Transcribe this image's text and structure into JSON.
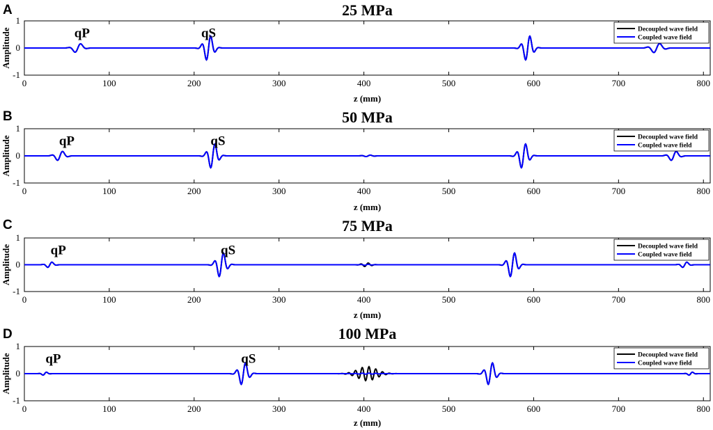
{
  "chart_data": [
    {
      "type": "line",
      "panel": "A",
      "title": "25 MPa",
      "xlabel": "z (mm)",
      "ylabel": "Amplitude",
      "xlim": [
        0,
        808
      ],
      "ylim": [
        -1,
        1
      ],
      "xticks": [
        0,
        100,
        200,
        300,
        400,
        500,
        600,
        700,
        800
      ],
      "yticks": [
        -1,
        0,
        1
      ],
      "legend": {
        "position": "top-right",
        "entries": [
          "Decoupled wave field",
          "Coupled wave field"
        ]
      },
      "annotations": [
        {
          "text": "qP",
          "x": 68,
          "y": 0.55
        },
        {
          "text": "qS",
          "x": 217,
          "y": 0.55
        }
      ],
      "series": [
        {
          "name": "Decoupled wave field",
          "color": "#000000",
          "wavelets": [
            {
              "center": 63,
              "amplitude": 0.2,
              "width": 5,
              "period": 16
            },
            {
              "center": 217,
              "amplitude": 0.5,
              "width": 5,
              "period": 11
            },
            {
              "center": 593,
              "amplitude": 0.5,
              "width": 5,
              "period": 11
            },
            {
              "center": 745,
              "amplitude": 0.2,
              "width": 6,
              "period": 16
            }
          ]
        },
        {
          "name": "Coupled wave field",
          "color": "#0000ff",
          "wavelets": [
            {
              "center": 63,
              "amplitude": 0.2,
              "width": 5,
              "period": 16
            },
            {
              "center": 217,
              "amplitude": 0.5,
              "width": 5,
              "period": 11
            },
            {
              "center": 593,
              "amplitude": 0.5,
              "width": 5,
              "period": 11
            },
            {
              "center": 745,
              "amplitude": 0.2,
              "width": 6,
              "period": 16
            }
          ]
        }
      ]
    },
    {
      "type": "line",
      "panel": "B",
      "title": "50 MPa",
      "xlabel": "z (mm)",
      "ylabel": "Amplitude",
      "xlim": [
        0,
        808
      ],
      "ylim": [
        -1,
        1
      ],
      "xticks": [
        0,
        100,
        200,
        300,
        400,
        500,
        600,
        700,
        800
      ],
      "yticks": [
        -1,
        0,
        1
      ],
      "legend": {
        "position": "top-right",
        "entries": [
          "Decoupled wave field",
          "Coupled wave field"
        ]
      },
      "annotations": [
        {
          "text": "qP",
          "x": 50,
          "y": 0.55
        },
        {
          "text": "qS",
          "x": 228,
          "y": 0.55
        }
      ],
      "series": [
        {
          "name": "Decoupled wave field",
          "color": "#000000",
          "wavelets": [
            {
              "center": 42,
              "amplitude": 0.2,
              "width": 5,
              "period": 14
            },
            {
              "center": 222,
              "amplitude": 0.5,
              "width": 5,
              "period": 11
            },
            {
              "center": 405,
              "amplitude": 0.03,
              "width": 5,
              "period": 11
            },
            {
              "center": 588,
              "amplitude": 0.5,
              "width": 5,
              "period": 11
            },
            {
              "center": 765,
              "amplitude": 0.2,
              "width": 5,
              "period": 14
            }
          ]
        },
        {
          "name": "Coupled wave field",
          "color": "#0000ff",
          "wavelets": [
            {
              "center": 42,
              "amplitude": 0.2,
              "width": 5,
              "period": 14
            },
            {
              "center": 222,
              "amplitude": 0.5,
              "width": 5,
              "period": 11
            },
            {
              "center": 405,
              "amplitude": 0.03,
              "width": 5,
              "period": 11
            },
            {
              "center": 588,
              "amplitude": 0.5,
              "width": 5,
              "period": 11
            },
            {
              "center": 765,
              "amplitude": 0.2,
              "width": 5,
              "period": 14
            }
          ]
        }
      ]
    },
    {
      "type": "line",
      "panel": "C",
      "title": "75 MPa",
      "xlabel": "z (mm)",
      "ylabel": "Amplitude",
      "xlim": [
        0,
        808
      ],
      "ylim": [
        -1,
        1
      ],
      "xticks": [
        0,
        100,
        200,
        300,
        400,
        500,
        600,
        700,
        800
      ],
      "yticks": [
        -1,
        0,
        1
      ],
      "legend": {
        "position": "top-right",
        "entries": [
          "Decoupled wave field",
          "Coupled wave field"
        ]
      },
      "annotations": [
        {
          "text": "qP",
          "x": 40,
          "y": 0.55
        },
        {
          "text": "qS",
          "x": 240,
          "y": 0.55
        }
      ],
      "series": [
        {
          "name": "Decoupled wave field",
          "color": "#000000",
          "wavelets": [
            {
              "center": 30,
              "amplitude": 0.12,
              "width": 4,
              "period": 12
            },
            {
              "center": 232,
              "amplitude": 0.5,
              "width": 5,
              "period": 11
            },
            {
              "center": 403,
              "amplitude": 0.07,
              "width": 5,
              "period": 9
            },
            {
              "center": 575,
              "amplitude": 0.5,
              "width": 5,
              "period": 11
            },
            {
              "center": 778,
              "amplitude": 0.12,
              "width": 4,
              "period": 12
            }
          ]
        },
        {
          "name": "Coupled wave field",
          "color": "#0000ff",
          "wavelets": [
            {
              "center": 30,
              "amplitude": 0.12,
              "width": 4,
              "period": 12
            },
            {
              "center": 232,
              "amplitude": 0.5,
              "width": 5,
              "period": 11
            },
            {
              "center": 403,
              "amplitude": 0.02,
              "width": 5,
              "period": 9
            },
            {
              "center": 575,
              "amplitude": 0.5,
              "width": 5,
              "period": 11
            },
            {
              "center": 778,
              "amplitude": 0.12,
              "width": 4,
              "period": 12
            }
          ]
        }
      ]
    },
    {
      "type": "line",
      "panel": "D",
      "title": "100 MPa",
      "xlabel": "z (mm)",
      "ylabel": "Amplitude",
      "xlim": [
        0,
        808
      ],
      "ylim": [
        -1,
        1
      ],
      "xticks": [
        0,
        100,
        200,
        300,
        400,
        500,
        600,
        700,
        800
      ],
      "yticks": [
        -1,
        0,
        1
      ],
      "legend": {
        "position": "top-right",
        "entries": [
          "Decoupled wave field",
          "Coupled wave field"
        ]
      },
      "annotations": [
        {
          "text": "qP",
          "x": 34,
          "y": 0.55
        },
        {
          "text": "qS",
          "x": 264,
          "y": 0.55
        }
      ],
      "series": [
        {
          "name": "Decoupled wave field",
          "color": "#000000",
          "wavelets": [
            {
              "center": 24,
              "amplitude": 0.07,
              "width": 3,
              "period": 10
            },
            {
              "center": 258,
              "amplitude": 0.45,
              "width": 5,
              "period": 11
            },
            {
              "center": 404,
              "amplitude": 0.26,
              "width": 11,
              "period": 8
            },
            {
              "center": 549,
              "amplitude": 0.45,
              "width": 5,
              "period": 11
            },
            {
              "center": 785,
              "amplitude": 0.07,
              "width": 3,
              "period": 10
            }
          ]
        },
        {
          "name": "Coupled wave field",
          "color": "#0000ff",
          "wavelets": [
            {
              "center": 24,
              "amplitude": 0.07,
              "width": 3,
              "period": 10
            },
            {
              "center": 258,
              "amplitude": 0.45,
              "width": 5,
              "period": 11
            },
            {
              "center": 404,
              "amplitude": 0.02,
              "width": 11,
              "period": 8
            },
            {
              "center": 549,
              "amplitude": 0.45,
              "width": 5,
              "period": 11
            },
            {
              "center": 785,
              "amplitude": 0.07,
              "width": 3,
              "period": 10
            }
          ]
        }
      ]
    }
  ]
}
